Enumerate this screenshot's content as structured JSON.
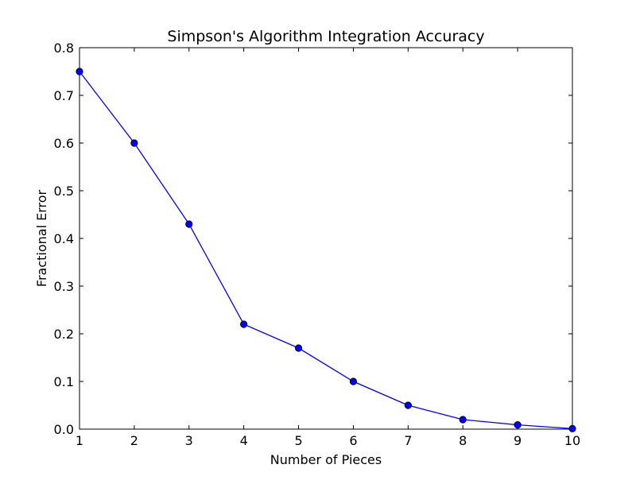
{
  "chart_data": {
    "type": "line",
    "title": "Simpson's Algorithm Integration Accuracy",
    "xlabel": "Number of Pieces",
    "ylabel": "Fractional Error",
    "xlim": [
      1,
      10
    ],
    "ylim": [
      0.0,
      0.8
    ],
    "xticks": [
      1,
      2,
      3,
      4,
      5,
      6,
      7,
      8,
      9,
      10
    ],
    "xtick_labels": [
      "1",
      "2",
      "3",
      "4",
      "5",
      "6",
      "7",
      "8",
      "9",
      "10"
    ],
    "yticks": [
      0.0,
      0.1,
      0.2,
      0.3,
      0.4,
      0.5,
      0.6,
      0.7,
      0.8
    ],
    "ytick_labels": [
      "0.0",
      "0.1",
      "0.2",
      "0.3",
      "0.4",
      "0.5",
      "0.6",
      "0.7",
      "0.8"
    ],
    "grid": false,
    "legend": "none",
    "series": [
      {
        "color": "#0000ff",
        "marker": "circle",
        "x": [
          1,
          2,
          3,
          4,
          5,
          6,
          7,
          8,
          9,
          10
        ],
        "y": [
          0.75,
          0.6,
          0.43,
          0.22,
          0.17,
          0.1,
          0.05,
          0.02,
          0.009,
          0.001
        ]
      }
    ]
  }
}
